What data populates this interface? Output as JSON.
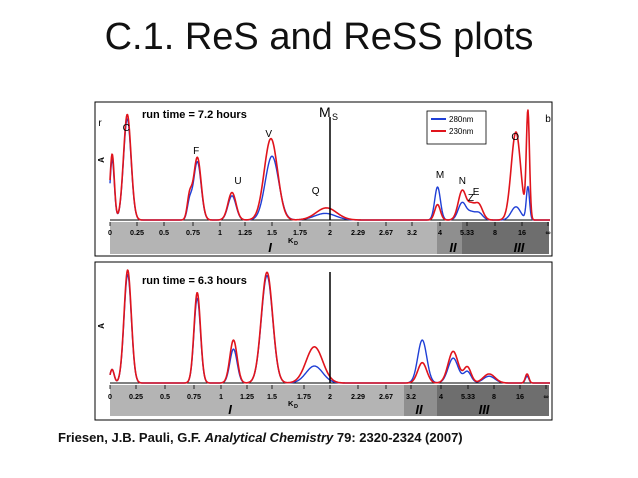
{
  "slide": {
    "title": "C.1. ReS and ReSS plots",
    "citation_authors": "Friesen, J.B. Pauli, G.F. ",
    "citation_journal": "Analytical Chemistry",
    "citation_rest": " 79: 2320-2324 (2007)"
  },
  "colors": {
    "series_280": "#1f3fd6",
    "series_230": "#e0141c",
    "band_light": "#b4b4b4",
    "band_dark": "#6e6e6e",
    "axis": "#000000"
  },
  "chart_data": [
    {
      "type": "line",
      "annotation": "run time = 7.2 hours",
      "ylabel": "A",
      "xlabel": "K",
      "xlabel_sub": "D",
      "tick_labels": [
        "0",
        "0.25",
        "0.5",
        "0.75",
        "1",
        "1.25",
        "1.5",
        "1.75",
        "2",
        "2.29",
        "2.67",
        "3.2",
        "4",
        "5.33",
        "8",
        "16",
        "∞"
      ],
      "region_labels": [
        "I",
        "II",
        "III"
      ],
      "legend": {
        "position": "top-right",
        "entries": [
          "280nm",
          "230nm"
        ]
      },
      "marker": {
        "label": "M",
        "label_sub": "S",
        "kd": 2
      },
      "peak_labels": [
        {
          "label": "r",
          "kd": -0.05
        },
        {
          "label": "C",
          "kd": 0.15
        },
        {
          "label": "F",
          "kd": 0.78
        },
        {
          "label": "U",
          "kd": 1.18
        },
        {
          "label": "V",
          "kd": 1.47
        },
        {
          "label": "Q",
          "kd": 1.88
        },
        {
          "label": "M",
          "kd": 4.0
        },
        {
          "label": "N",
          "kd": 5.1
        },
        {
          "label": "Z",
          "kd": 5.7
        },
        {
          "label": "E",
          "kd": 6.2
        },
        {
          "label": "O",
          "kd": 14.0
        },
        {
          "label": "b",
          "kd": 30
        }
      ],
      "series": [
        {
          "name": "280nm",
          "peaks": [
            [
              0.02,
              0.55,
              0.02
            ],
            [
              0.16,
              0.92,
              0.035
            ],
            [
              0.72,
              0.15,
              0.02
            ],
            [
              0.79,
              0.53,
              0.035
            ],
            [
              1.12,
              0.22,
              0.04
            ],
            [
              1.5,
              0.58,
              0.06
            ],
            [
              1.96,
              0.06,
              0.1
            ],
            [
              3.93,
              0.3,
              0.09
            ],
            [
              5.1,
              0.16,
              0.2
            ],
            [
              5.7,
              0.05,
              0.3
            ],
            [
              6.4,
              0.07,
              0.4
            ],
            [
              14.2,
              0.12,
              1.4
            ],
            [
              26,
              0.3,
              2.5
            ]
          ]
        },
        {
          "name": "230nm",
          "peaks": [
            [
              0.02,
              0.6,
              0.02
            ],
            [
              0.16,
              0.96,
              0.035
            ],
            [
              0.72,
              0.2,
              0.02
            ],
            [
              0.79,
              0.57,
              0.035
            ],
            [
              1.12,
              0.25,
              0.04
            ],
            [
              1.49,
              0.74,
              0.06
            ],
            [
              1.97,
              0.11,
              0.1
            ],
            [
              3.93,
              0.14,
              0.09
            ],
            [
              5.1,
              0.27,
              0.2
            ],
            [
              5.7,
              0.1,
              0.3
            ],
            [
              6.4,
              0.15,
              0.4
            ],
            [
              14.2,
              0.8,
              1.4
            ],
            [
              26,
              0.97,
              2.5
            ]
          ]
        }
      ]
    },
    {
      "type": "line",
      "annotation": "run time = 6.3 hours",
      "ylabel": "A",
      "xlabel": "K",
      "xlabel_sub": "D",
      "tick_labels": [
        "0",
        "0.25",
        "0.5",
        "0.75",
        "1",
        "1.25",
        "1.5",
        "1.75",
        "2",
        "2.29",
        "2.67",
        "3.2",
        "4",
        "5.33",
        "8",
        "16",
        "∞"
      ],
      "region_labels": [
        "I",
        "II",
        "III"
      ],
      "marker": {
        "kd": 2
      },
      "series": [
        {
          "name": "280nm",
          "peaks": [
            [
              0.02,
              0.12,
              0.02
            ],
            [
              0.17,
              0.96,
              0.035
            ],
            [
              0.78,
              0.75,
              0.03
            ],
            [
              1.12,
              0.3,
              0.035
            ],
            [
              1.45,
              0.95,
              0.055
            ],
            [
              1.85,
              0.15,
              0.08
            ],
            [
              3.5,
              0.38,
              0.12
            ],
            [
              4.6,
              0.22,
              0.25
            ],
            [
              5.3,
              0.1,
              0.35
            ],
            [
              7.5,
              0.06,
              0.8
            ],
            [
              28,
              0.06,
              3
            ]
          ]
        },
        {
          "name": "230nm",
          "peaks": [
            [
              0.02,
              0.12,
              0.02
            ],
            [
              0.17,
              1.0,
              0.035
            ],
            [
              0.78,
              0.8,
              0.03
            ],
            [
              1.12,
              0.38,
              0.035
            ],
            [
              1.45,
              0.98,
              0.055
            ],
            [
              1.85,
              0.32,
              0.08
            ],
            [
              3.5,
              0.18,
              0.12
            ],
            [
              4.6,
              0.28,
              0.25
            ],
            [
              5.3,
              0.14,
              0.35
            ],
            [
              7.5,
              0.08,
              0.8
            ],
            [
              28,
              0.08,
              3
            ]
          ]
        }
      ]
    }
  ]
}
